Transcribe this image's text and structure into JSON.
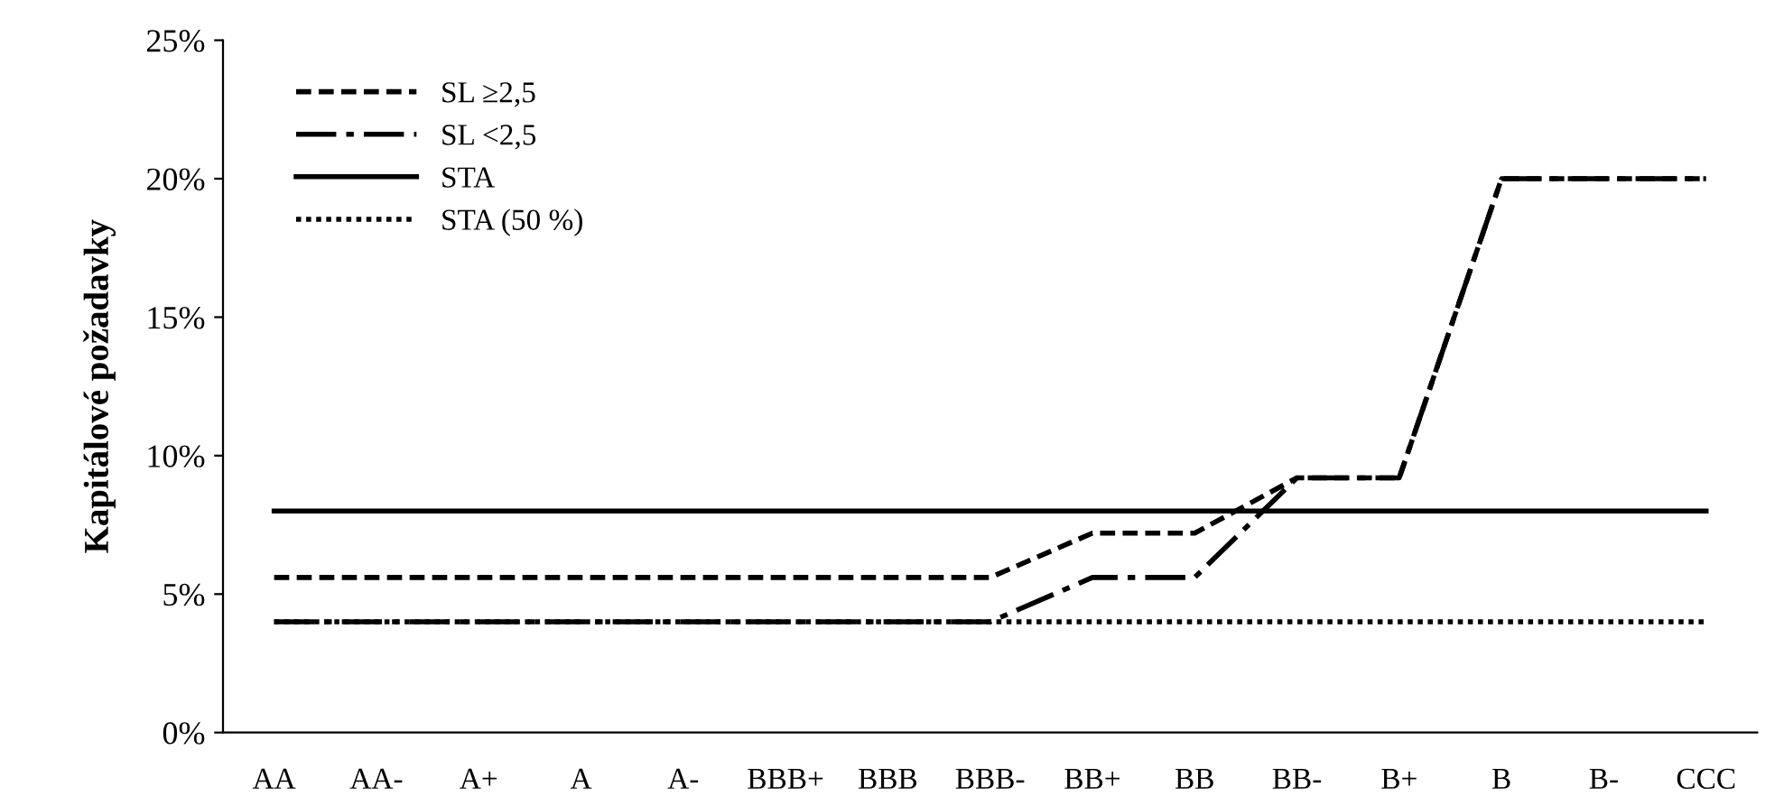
{
  "chart_data": {
    "type": "line",
    "ylabel": "Kapitálové požadavky",
    "categories": [
      "AA",
      "AA-",
      "A+",
      "A",
      "A-",
      "BBB+",
      "BBB",
      "BBB-",
      "BB+",
      "BB",
      "BB-",
      "B+",
      "B",
      "B-",
      "CCC"
    ],
    "series": [
      {
        "name": "SL ≥2,5",
        "color": "#000000",
        "line_style": "dashed",
        "values": [
          5.6,
          5.6,
          5.6,
          5.6,
          5.6,
          5.6,
          5.6,
          5.6,
          7.2,
          7.2,
          9.2,
          9.2,
          20,
          20,
          20
        ]
      },
      {
        "name": "SL <2,5",
        "color": "#000000",
        "line_style": "dashdot",
        "values": [
          4,
          4,
          4,
          4,
          4,
          4,
          4,
          4,
          5.6,
          5.6,
          9.2,
          9.2,
          20,
          20,
          20
        ]
      },
      {
        "name": "STA",
        "color": "#000000",
        "line_style": "solid",
        "values": [
          8,
          8,
          8,
          8,
          8,
          8,
          8,
          8,
          8,
          8,
          8,
          8,
          8,
          8,
          8
        ]
      },
      {
        "name": "STA (50 %)",
        "color": "#000000",
        "line_style": "dotted",
        "values": [
          4,
          4,
          4,
          4,
          4,
          4,
          4,
          4,
          4,
          4,
          4,
          4,
          4,
          4,
          4
        ]
      }
    ],
    "ylim": [
      0,
      25
    ],
    "yticks": [
      {
        "value": 0,
        "label": "0%"
      },
      {
        "value": 5,
        "label": "5%"
      },
      {
        "value": 10,
        "label": "10%"
      },
      {
        "value": 15,
        "label": "15%"
      },
      {
        "value": 20,
        "label": "20%"
      },
      {
        "value": 25,
        "label": "25%"
      }
    ],
    "grid": false,
    "legend": "top left",
    "marker": "none"
  }
}
